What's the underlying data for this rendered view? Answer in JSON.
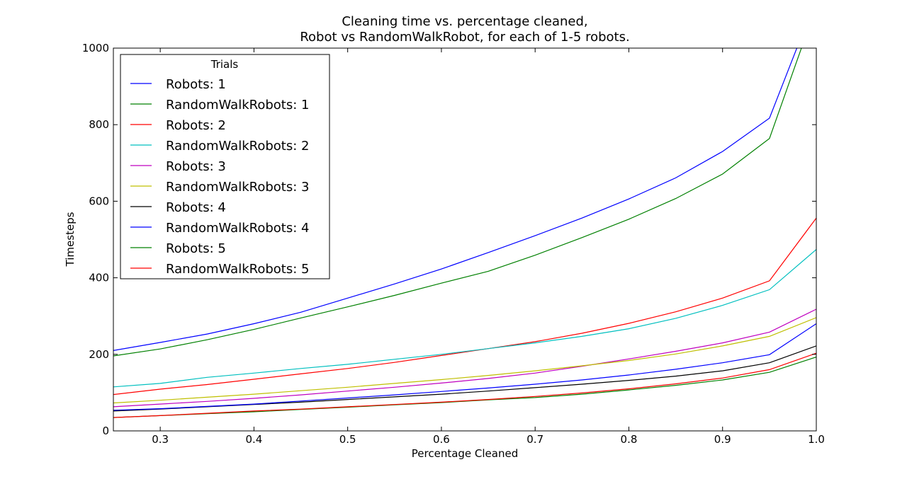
{
  "chart_data": {
    "type": "line",
    "title": "Cleaning time vs. percentage cleaned,",
    "subtitle": "Robot vs RandomWalkRobot, for each of 1-5 robots.",
    "xlabel": "Percentage Cleaned",
    "ylabel": "Timesteps",
    "xlim": [
      0.25,
      1.0
    ],
    "ylim": [
      0,
      1000
    ],
    "xticks": [
      0.3,
      0.4,
      0.5,
      0.6,
      0.7,
      0.8,
      0.9,
      1.0
    ],
    "xtick_labels": [
      "0.3",
      "0.4",
      "0.5",
      "0.6",
      "0.7",
      "0.8",
      "0.9",
      "1.0"
    ],
    "yticks": [
      0,
      200,
      400,
      600,
      800,
      1000
    ],
    "ytick_labels": [
      "0",
      "200",
      "400",
      "600",
      "800",
      "1000"
    ],
    "grid": false,
    "legend": {
      "title": "Trials",
      "position": "top-left"
    },
    "x": [
      0.25,
      0.3,
      0.35,
      0.4,
      0.45,
      0.5,
      0.55,
      0.6,
      0.65,
      0.7,
      0.75,
      0.8,
      0.85,
      0.9,
      0.95,
      1.0
    ],
    "series": [
      {
        "name": "Robots: 1",
        "color": "#0000ff",
        "values": [
          210,
          231,
          253,
          280,
          310,
          347,
          384,
          423,
          466,
          510,
          556,
          606,
          661,
          730,
          817,
          1130
        ]
      },
      {
        "name": "RandomWalkRobots: 1",
        "color": "#008000",
        "values": [
          196,
          214,
          238,
          265,
          295,
          324,
          354,
          386,
          417,
          459,
          505,
          553,
          607,
          671,
          764,
          1110
        ]
      },
      {
        "name": "Robots: 2",
        "color": "#ff0000",
        "values": [
          95,
          109,
          121,
          135,
          149,
          163,
          179,
          197,
          215,
          233,
          255,
          281,
          311,
          347,
          392,
          556
        ]
      },
      {
        "name": "RandomWalkRobots: 2",
        "color": "#00bfbf",
        "values": [
          115,
          124,
          140,
          151,
          163,
          174,
          187,
          200,
          215,
          230,
          247,
          267,
          294,
          328,
          369,
          474
        ]
      },
      {
        "name": "Robots: 3",
        "color": "#bf00bf",
        "values": [
          63,
          70,
          77,
          85,
          94,
          104,
          114,
          125,
          137,
          151,
          169,
          188,
          208,
          230,
          258,
          318
        ]
      },
      {
        "name": "RandomWalkRobots: 3",
        "color": "#bfbf00",
        "values": [
          73,
          80,
          88,
          96,
          105,
          114,
          124,
          134,
          145,
          157,
          170,
          184,
          201,
          222,
          247,
          296
        ]
      },
      {
        "name": "Robots: 4",
        "color": "#000000",
        "values": [
          52,
          57,
          63,
          69,
          75,
          82,
          89,
          96,
          104,
          113,
          122,
          132,
          143,
          157,
          178,
          222
        ]
      },
      {
        "name": "RandomWalkRobots: 4",
        "color": "#0000ff",
        "values": [
          54,
          58,
          64,
          70,
          78,
          86,
          94,
          103,
          112,
          122,
          133,
          146,
          161,
          178,
          199,
          280
        ]
      },
      {
        "name": "Robots: 5",
        "color": "#008000",
        "values": [
          35,
          40,
          45,
          50,
          56,
          62,
          68,
          74,
          81,
          87,
          96,
          107,
          119,
          133,
          153,
          193
        ]
      },
      {
        "name": "RandomWalkRobots: 5",
        "color": "#ff0000",
        "values": [
          35,
          40,
          46,
          52,
          57,
          63,
          69,
          75,
          82,
          90,
          99,
          110,
          123,
          138,
          160,
          203
        ]
      }
    ]
  }
}
